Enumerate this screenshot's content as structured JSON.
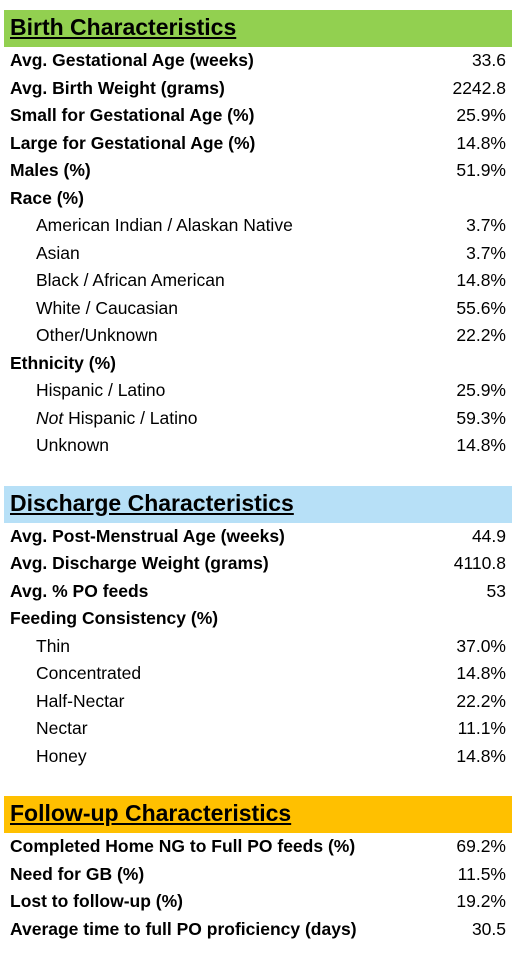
{
  "sections": [
    {
      "title": "Birth Characteristics",
      "color": "#92d050",
      "rows": [
        {
          "label": "Avg. Gestational Age (weeks)",
          "value": "33.6"
        },
        {
          "label": "Avg. Birth Weight (grams)",
          "value": "2242.8"
        },
        {
          "label": "Small for Gestational Age (%)",
          "value": "25.9%"
        },
        {
          "label": "Large for Gestational Age (%)",
          "value": "14.8%"
        },
        {
          "label": "Males (%)",
          "value": "51.9%"
        },
        {
          "label": "Race (%)",
          "items": [
            {
              "label": "American Indian / Alaskan Native",
              "value": "3.7%"
            },
            {
              "label": "Asian",
              "value": "3.7%"
            },
            {
              "label": "Black / African American",
              "value": "14.8%"
            },
            {
              "label": "White / Caucasian",
              "value": "55.6%"
            },
            {
              "label": "Other/Unknown",
              "value": "22.2%"
            }
          ]
        },
        {
          "label": "Ethnicity (%)",
          "items": [
            {
              "label": "Hispanic / Latino",
              "value": "25.9%"
            },
            {
              "label_italic": "Not",
              "label": "Hispanic / Latino",
              "value": "59.3%"
            },
            {
              "label": "Unknown",
              "value": "14.8%"
            }
          ]
        }
      ]
    },
    {
      "title": "Discharge Characteristics",
      "color": "#b7e0f7",
      "rows": [
        {
          "label": "Avg. Post-Menstrual Age (weeks)",
          "value": "44.9"
        },
        {
          "label": "Avg. Discharge Weight (grams)",
          "value": "4110.8"
        },
        {
          "label": "Avg. % PO feeds",
          "value": "53"
        },
        {
          "label": "Feeding Consistency (%)",
          "items": [
            {
              "label": "Thin",
              "value": "37.0%"
            },
            {
              "label": "Concentrated",
              "value": "14.8%"
            },
            {
              "label": "Half-Nectar",
              "value": "22.2%"
            },
            {
              "label": "Nectar",
              "value": "11.1%"
            },
            {
              "label": "Honey",
              "value": "14.8%"
            }
          ]
        }
      ]
    },
    {
      "title": "Follow-up Characteristics",
      "color": "#ffc000",
      "rows": [
        {
          "label": "Completed Home NG to Full PO feeds (%)",
          "value": "69.2%"
        },
        {
          "label": "Need for GB (%)",
          "value": "11.5%"
        },
        {
          "label": "Lost to follow-up (%)",
          "value": "19.2%"
        },
        {
          "label": "Average time to full PO proficiency (days)",
          "value": "30.5"
        }
      ]
    }
  ]
}
